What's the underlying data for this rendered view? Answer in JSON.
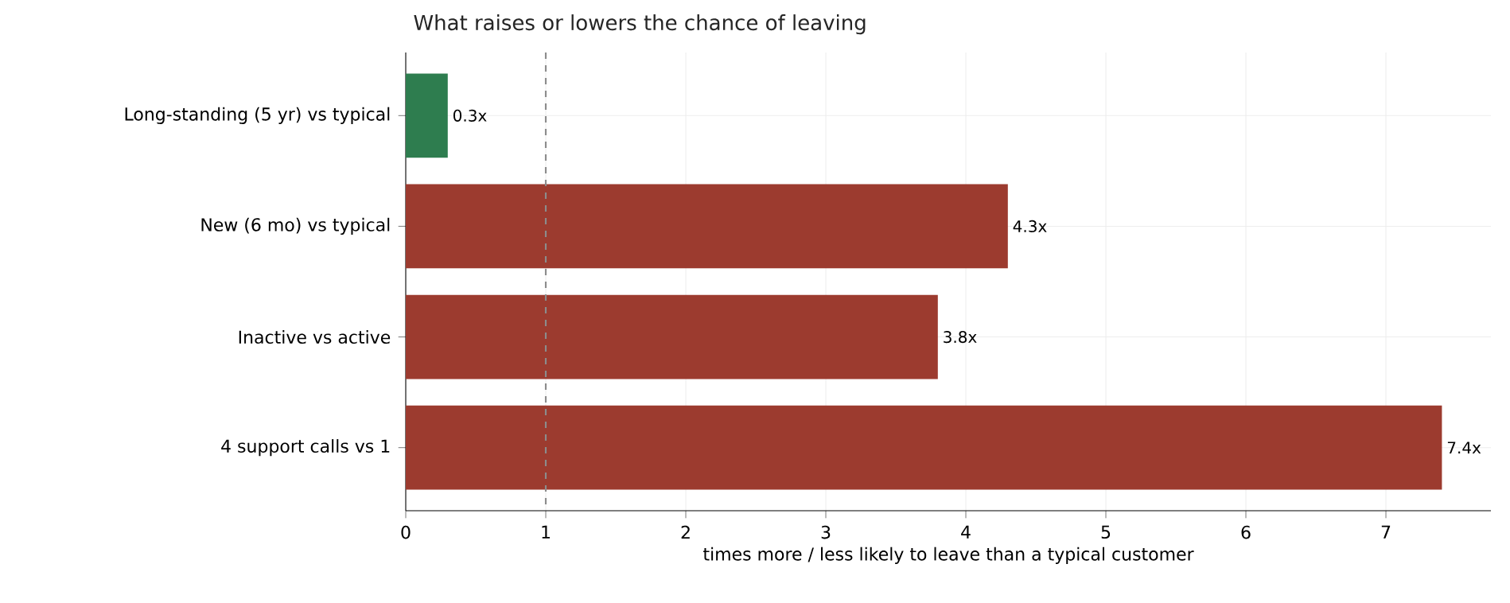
{
  "chart_data": {
    "type": "bar",
    "orientation": "horizontal",
    "title": "What raises or lowers the chance of leaving",
    "xlabel": "times more / less likely to leave than a typical customer",
    "categories": [
      "Long-standing (5 yr) vs typical",
      "New (6 mo) vs typical",
      "Inactive vs active",
      "4 support calls vs 1"
    ],
    "values": [
      0.3,
      4.3,
      3.8,
      7.4
    ],
    "value_labels": [
      "0.3x",
      "4.3x",
      "3.8x",
      "7.4x"
    ],
    "colors": [
      "#2e7d4f",
      "#9c3b2f",
      "#9c3b2f",
      "#9c3b2f"
    ],
    "xlim": [
      0,
      7.75
    ],
    "xticks": [
      0,
      1,
      2,
      3,
      4,
      5,
      6,
      7
    ],
    "grid": true,
    "ref_lines": [
      {
        "axis": "x",
        "value": 1,
        "color": "#8c8c8c",
        "line_style": "dashed"
      }
    ]
  }
}
